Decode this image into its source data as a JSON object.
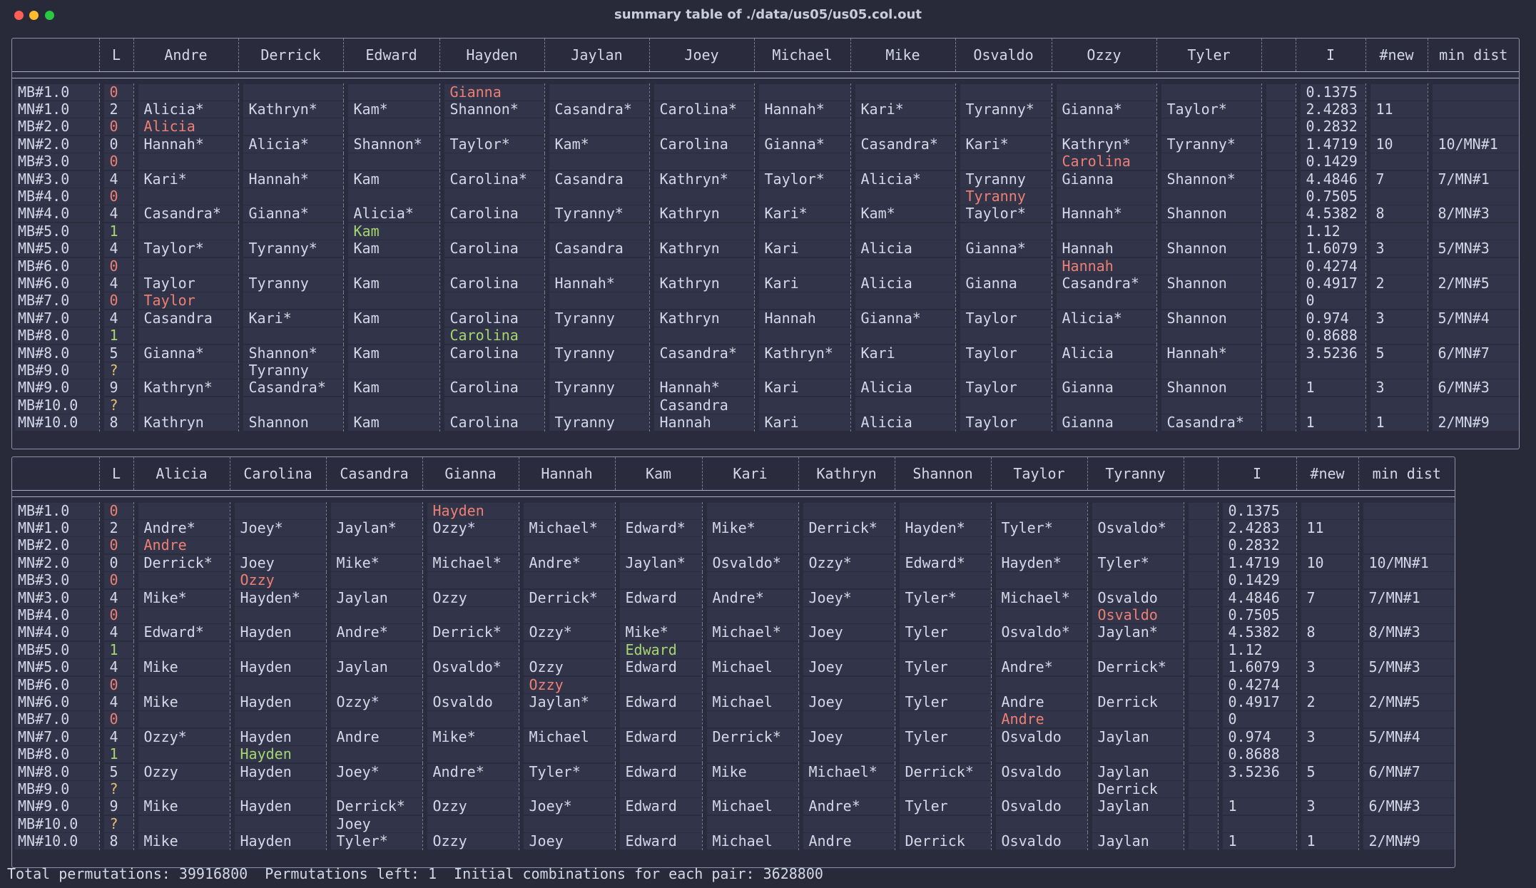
{
  "window": {
    "title": "summary table of ./data/us05/us05.col.out"
  },
  "colors": {
    "red": "#ee7f73",
    "green": "#a5d66f",
    "yellow": "#e6c06b",
    "background": "#282a3a"
  },
  "table1": {
    "headers": [
      "",
      "L",
      "Andre",
      "Derrick",
      "Edward",
      "Hayden",
      "Jaylan",
      "Joey",
      "Michael",
      "Mike",
      "Osvaldo",
      "Ozzy",
      "Tyler",
      "",
      "I",
      "#new",
      "min dist"
    ],
    "rows": [
      {
        "label": "MB#1.0",
        "L": "0",
        "Lc": "red",
        "cells": [
          "",
          "",
          "",
          "Gianna",
          "",
          "",
          "",
          "",
          "",
          "",
          "",
          ""
        ],
        "cc": [
          0,
          0,
          0,
          1,
          0,
          0,
          0,
          0,
          0,
          0,
          0,
          0
        ],
        "I": "0.1375",
        "new": "",
        "dist": ""
      },
      {
        "label": "MN#1.0",
        "L": "2",
        "Lc": "",
        "cells": [
          "Alicia*",
          "Kathryn*",
          "Kam*",
          "Shannon*",
          "Casandra*",
          "Carolina*",
          "Hannah*",
          "Kari*",
          "Tyranny*",
          "Gianna*",
          "Taylor*",
          ""
        ],
        "cc": [],
        "I": "2.4283",
        "new": "11",
        "dist": ""
      },
      {
        "label": "MB#2.0",
        "L": "0",
        "Lc": "red",
        "cells": [
          "Alicia",
          "",
          "",
          "",
          "",
          "",
          "",
          "",
          "",
          "",
          "",
          ""
        ],
        "cc": [
          1,
          0,
          0,
          0,
          0,
          0,
          0,
          0,
          0,
          0,
          0,
          0
        ],
        "I": "0.2832",
        "new": "",
        "dist": ""
      },
      {
        "label": "MN#2.0",
        "L": "0",
        "Lc": "",
        "cells": [
          "Hannah*",
          "Alicia*",
          "Shannon*",
          "Taylor*",
          "Kam*",
          "Carolina",
          "Gianna*",
          "Casandra*",
          "Kari*",
          "Kathryn*",
          "Tyranny*",
          ""
        ],
        "cc": [],
        "I": "1.4719",
        "new": "10",
        "dist": "10/MN#1"
      },
      {
        "label": "MB#3.0",
        "L": "0",
        "Lc": "red",
        "cells": [
          "",
          "",
          "",
          "",
          "",
          "",
          "",
          "",
          "",
          "Carolina",
          "",
          ""
        ],
        "cc": [
          0,
          0,
          0,
          0,
          0,
          0,
          0,
          0,
          0,
          1,
          0,
          0
        ],
        "I": "0.1429",
        "new": "",
        "dist": ""
      },
      {
        "label": "MN#3.0",
        "L": "4",
        "Lc": "",
        "cells": [
          "Kari*",
          "Hannah*",
          "Kam",
          "Carolina*",
          "Casandra",
          "Kathryn*",
          "Taylor*",
          "Alicia*",
          "Tyranny",
          "Gianna",
          "Shannon*",
          ""
        ],
        "cc": [],
        "I": "4.4846",
        "new": "7",
        "dist": "7/MN#1"
      },
      {
        "label": "MB#4.0",
        "L": "0",
        "Lc": "red",
        "cells": [
          "",
          "",
          "",
          "",
          "",
          "",
          "",
          "",
          "Tyranny",
          "",
          "",
          ""
        ],
        "cc": [
          0,
          0,
          0,
          0,
          0,
          0,
          0,
          0,
          1,
          0,
          0,
          0
        ],
        "I": "0.7505",
        "new": "",
        "dist": ""
      },
      {
        "label": "MN#4.0",
        "L": "4",
        "Lc": "",
        "cells": [
          "Casandra*",
          "Gianna*",
          "Alicia*",
          "Carolina",
          "Tyranny*",
          "Kathryn",
          "Kari*",
          "Kam*",
          "Taylor*",
          "Hannah*",
          "Shannon",
          ""
        ],
        "cc": [],
        "I": "4.5382",
        "new": "8",
        "dist": "8/MN#3"
      },
      {
        "label": "MB#5.0",
        "L": "1",
        "Lc": "green",
        "cells": [
          "",
          "",
          "Kam",
          "",
          "",
          "",
          "",
          "",
          "",
          "",
          "",
          ""
        ],
        "cc": [
          0,
          0,
          2,
          0,
          0,
          0,
          0,
          0,
          0,
          0,
          0,
          0
        ],
        "I": "1.12",
        "new": "",
        "dist": ""
      },
      {
        "label": "MN#5.0",
        "L": "4",
        "Lc": "",
        "cells": [
          "Taylor*",
          "Tyranny*",
          "Kam",
          "Carolina",
          "Casandra",
          "Kathryn",
          "Kari",
          "Alicia",
          "Gianna*",
          "Hannah",
          "Shannon",
          ""
        ],
        "cc": [],
        "I": "1.6079",
        "new": "3",
        "dist": "5/MN#3"
      },
      {
        "label": "MB#6.0",
        "L": "0",
        "Lc": "red",
        "cells": [
          "",
          "",
          "",
          "",
          "",
          "",
          "",
          "",
          "",
          "Hannah",
          "",
          ""
        ],
        "cc": [
          0,
          0,
          0,
          0,
          0,
          0,
          0,
          0,
          0,
          1,
          0,
          0
        ],
        "I": "0.4274",
        "new": "",
        "dist": ""
      },
      {
        "label": "MN#6.0",
        "L": "4",
        "Lc": "",
        "cells": [
          "Taylor",
          "Tyranny",
          "Kam",
          "Carolina",
          "Hannah*",
          "Kathryn",
          "Kari",
          "Alicia",
          "Gianna",
          "Casandra*",
          "Shannon",
          ""
        ],
        "cc": [],
        "I": "0.4917",
        "new": "2",
        "dist": "2/MN#5"
      },
      {
        "label": "MB#7.0",
        "L": "0",
        "Lc": "red",
        "cells": [
          "Taylor",
          "",
          "",
          "",
          "",
          "",
          "",
          "",
          "",
          "",
          "",
          ""
        ],
        "cc": [
          1,
          0,
          0,
          0,
          0,
          0,
          0,
          0,
          0,
          0,
          0,
          0
        ],
        "I": "0",
        "new": "",
        "dist": ""
      },
      {
        "label": "MN#7.0",
        "L": "4",
        "Lc": "",
        "cells": [
          "Casandra",
          "Kari*",
          "Kam",
          "Carolina",
          "Tyranny",
          "Kathryn",
          "Hannah",
          "Gianna*",
          "Taylor",
          "Alicia*",
          "Shannon",
          ""
        ],
        "cc": [],
        "I": "0.974",
        "new": "3",
        "dist": "5/MN#4"
      },
      {
        "label": "MB#8.0",
        "L": "1",
        "Lc": "green",
        "cells": [
          "",
          "",
          "",
          "Carolina",
          "",
          "",
          "",
          "",
          "",
          "",
          "",
          ""
        ],
        "cc": [
          0,
          0,
          0,
          2,
          0,
          0,
          0,
          0,
          0,
          0,
          0,
          0
        ],
        "I": "0.8688",
        "new": "",
        "dist": ""
      },
      {
        "label": "MN#8.0",
        "L": "5",
        "Lc": "",
        "cells": [
          "Gianna*",
          "Shannon*",
          "Kam",
          "Carolina",
          "Tyranny",
          "Casandra*",
          "Kathryn*",
          "Kari",
          "Taylor",
          "Alicia",
          "Hannah*",
          ""
        ],
        "cc": [],
        "I": "3.5236",
        "new": "5",
        "dist": "6/MN#7"
      },
      {
        "label": "MB#9.0",
        "L": "?",
        "Lc": "yellow",
        "cells": [
          "",
          "Tyranny",
          "",
          "",
          "",
          "",
          "",
          "",
          "",
          "",
          "",
          ""
        ],
        "cc": [],
        "I": "",
        "new": "",
        "dist": ""
      },
      {
        "label": "MN#9.0",
        "L": "9",
        "Lc": "",
        "cells": [
          "Kathryn*",
          "Casandra*",
          "Kam",
          "Carolina",
          "Tyranny",
          "Hannah*",
          "Kari",
          "Alicia",
          "Taylor",
          "Gianna",
          "Shannon",
          ""
        ],
        "cc": [],
        "I": "1",
        "new": "3",
        "dist": "6/MN#3"
      },
      {
        "label": "MB#10.0",
        "L": "?",
        "Lc": "yellow",
        "cells": [
          "",
          "",
          "",
          "",
          "",
          "Casandra",
          "",
          "",
          "",
          "",
          "",
          ""
        ],
        "cc": [],
        "I": "",
        "new": "",
        "dist": ""
      },
      {
        "label": "MN#10.0",
        "L": "8",
        "Lc": "",
        "cells": [
          "Kathryn",
          "Shannon",
          "Kam",
          "Carolina",
          "Tyranny",
          "Hannah",
          "Kari",
          "Alicia",
          "Taylor",
          "Gianna",
          "Casandra*",
          ""
        ],
        "cc": [],
        "I": "1",
        "new": "1",
        "dist": "2/MN#9"
      }
    ]
  },
  "table2": {
    "headers": [
      "",
      "L",
      "Alicia",
      "Carolina",
      "Casandra",
      "Gianna",
      "Hannah",
      "Kam",
      "Kari",
      "Kathryn",
      "Shannon",
      "Taylor",
      "Tyranny",
      "",
      "I",
      "#new",
      "min dist"
    ],
    "rows": [
      {
        "label": "MB#1.0",
        "L": "0",
        "Lc": "red",
        "cells": [
          "",
          "",
          "",
          "Hayden",
          "",
          "",
          "",
          "",
          "",
          "",
          "",
          ""
        ],
        "cc": [
          0,
          0,
          0,
          1,
          0,
          0,
          0,
          0,
          0,
          0,
          0,
          0
        ],
        "I": "0.1375",
        "new": "",
        "dist": ""
      },
      {
        "label": "MN#1.0",
        "L": "2",
        "Lc": "",
        "cells": [
          "Andre*",
          "Joey*",
          "Jaylan*",
          "Ozzy*",
          "Michael*",
          "Edward*",
          "Mike*",
          "Derrick*",
          "Hayden*",
          "Tyler*",
          "Osvaldo*",
          ""
        ],
        "cc": [],
        "I": "2.4283",
        "new": "11",
        "dist": ""
      },
      {
        "label": "MB#2.0",
        "L": "0",
        "Lc": "red",
        "cells": [
          "Andre",
          "",
          "",
          "",
          "",
          "",
          "",
          "",
          "",
          "",
          "",
          ""
        ],
        "cc": [
          1,
          0,
          0,
          0,
          0,
          0,
          0,
          0,
          0,
          0,
          0,
          0
        ],
        "I": "0.2832",
        "new": "",
        "dist": ""
      },
      {
        "label": "MN#2.0",
        "L": "0",
        "Lc": "",
        "cells": [
          "Derrick*",
          "Joey",
          "Mike*",
          "Michael*",
          "Andre*",
          "Jaylan*",
          "Osvaldo*",
          "Ozzy*",
          "Edward*",
          "Hayden*",
          "Tyler*",
          ""
        ],
        "cc": [],
        "I": "1.4719",
        "new": "10",
        "dist": "10/MN#1"
      },
      {
        "label": "MB#3.0",
        "L": "0",
        "Lc": "red",
        "cells": [
          "",
          "Ozzy",
          "",
          "",
          "",
          "",
          "",
          "",
          "",
          "",
          "",
          ""
        ],
        "cc": [
          0,
          1,
          0,
          0,
          0,
          0,
          0,
          0,
          0,
          0,
          0,
          0
        ],
        "I": "0.1429",
        "new": "",
        "dist": ""
      },
      {
        "label": "MN#3.0",
        "L": "4",
        "Lc": "",
        "cells": [
          "Mike*",
          "Hayden*",
          "Jaylan",
          "Ozzy",
          "Derrick*",
          "Edward",
          "Andre*",
          "Joey*",
          "Tyler*",
          "Michael*",
          "Osvaldo",
          ""
        ],
        "cc": [],
        "I": "4.4846",
        "new": "7",
        "dist": "7/MN#1"
      },
      {
        "label": "MB#4.0",
        "L": "0",
        "Lc": "red",
        "cells": [
          "",
          "",
          "",
          "",
          "",
          "",
          "",
          "",
          "",
          "",
          "Osvaldo",
          ""
        ],
        "cc": [
          0,
          0,
          0,
          0,
          0,
          0,
          0,
          0,
          0,
          0,
          1,
          0
        ],
        "I": "0.7505",
        "new": "",
        "dist": ""
      },
      {
        "label": "MN#4.0",
        "L": "4",
        "Lc": "",
        "cells": [
          "Edward*",
          "Hayden",
          "Andre*",
          "Derrick*",
          "Ozzy*",
          "Mike*",
          "Michael*",
          "Joey",
          "Tyler",
          "Osvaldo*",
          "Jaylan*",
          ""
        ],
        "cc": [],
        "I": "4.5382",
        "new": "8",
        "dist": "8/MN#3"
      },
      {
        "label": "MB#5.0",
        "L": "1",
        "Lc": "green",
        "cells": [
          "",
          "",
          "",
          "",
          "",
          "Edward",
          "",
          "",
          "",
          "",
          "",
          ""
        ],
        "cc": [
          0,
          0,
          0,
          0,
          0,
          2,
          0,
          0,
          0,
          0,
          0,
          0
        ],
        "I": "1.12",
        "new": "",
        "dist": ""
      },
      {
        "label": "MN#5.0",
        "L": "4",
        "Lc": "",
        "cells": [
          "Mike",
          "Hayden",
          "Jaylan",
          "Osvaldo*",
          "Ozzy",
          "Edward",
          "Michael",
          "Joey",
          "Tyler",
          "Andre*",
          "Derrick*",
          ""
        ],
        "cc": [],
        "I": "1.6079",
        "new": "3",
        "dist": "5/MN#3"
      },
      {
        "label": "MB#6.0",
        "L": "0",
        "Lc": "red",
        "cells": [
          "",
          "",
          "",
          "",
          "Ozzy",
          "",
          "",
          "",
          "",
          "",
          "",
          ""
        ],
        "cc": [
          0,
          0,
          0,
          0,
          1,
          0,
          0,
          0,
          0,
          0,
          0,
          0
        ],
        "I": "0.4274",
        "new": "",
        "dist": ""
      },
      {
        "label": "MN#6.0",
        "L": "4",
        "Lc": "",
        "cells": [
          "Mike",
          "Hayden",
          "Ozzy*",
          "Osvaldo",
          "Jaylan*",
          "Edward",
          "Michael",
          "Joey",
          "Tyler",
          "Andre",
          "Derrick",
          ""
        ],
        "cc": [],
        "I": "0.4917",
        "new": "2",
        "dist": "2/MN#5"
      },
      {
        "label": "MB#7.0",
        "L": "0",
        "Lc": "red",
        "cells": [
          "",
          "",
          "",
          "",
          "",
          "",
          "",
          "",
          "",
          "Andre",
          "",
          ""
        ],
        "cc": [
          0,
          0,
          0,
          0,
          0,
          0,
          0,
          0,
          0,
          1,
          0,
          0
        ],
        "I": "0",
        "new": "",
        "dist": ""
      },
      {
        "label": "MN#7.0",
        "L": "4",
        "Lc": "",
        "cells": [
          "Ozzy*",
          "Hayden",
          "Andre",
          "Mike*",
          "Michael",
          "Edward",
          "Derrick*",
          "Joey",
          "Tyler",
          "Osvaldo",
          "Jaylan",
          ""
        ],
        "cc": [],
        "I": "0.974",
        "new": "3",
        "dist": "5/MN#4"
      },
      {
        "label": "MB#8.0",
        "L": "1",
        "Lc": "green",
        "cells": [
          "",
          "Hayden",
          "",
          "",
          "",
          "",
          "",
          "",
          "",
          "",
          "",
          ""
        ],
        "cc": [
          0,
          2,
          0,
          0,
          0,
          0,
          0,
          0,
          0,
          0,
          0,
          0
        ],
        "I": "0.8688",
        "new": "",
        "dist": ""
      },
      {
        "label": "MN#8.0",
        "L": "5",
        "Lc": "",
        "cells": [
          "Ozzy",
          "Hayden",
          "Joey*",
          "Andre*",
          "Tyler*",
          "Edward",
          "Mike",
          "Michael*",
          "Derrick*",
          "Osvaldo",
          "Jaylan",
          ""
        ],
        "cc": [],
        "I": "3.5236",
        "new": "5",
        "dist": "6/MN#7"
      },
      {
        "label": "MB#9.0",
        "L": "?",
        "Lc": "yellow",
        "cells": [
          "",
          "",
          "",
          "",
          "",
          "",
          "",
          "",
          "",
          "",
          "Derrick",
          ""
        ],
        "cc": [],
        "I": "",
        "new": "",
        "dist": ""
      },
      {
        "label": "MN#9.0",
        "L": "9",
        "Lc": "",
        "cells": [
          "Mike",
          "Hayden",
          "Derrick*",
          "Ozzy",
          "Joey*",
          "Edward",
          "Michael",
          "Andre*",
          "Tyler",
          "Osvaldo",
          "Jaylan",
          ""
        ],
        "cc": [],
        "I": "1",
        "new": "3",
        "dist": "6/MN#3"
      },
      {
        "label": "MB#10.0",
        "L": "?",
        "Lc": "yellow",
        "cells": [
          "",
          "",
          "Joey",
          "",
          "",
          "",
          "",
          "",
          "",
          "",
          "",
          ""
        ],
        "cc": [],
        "I": "",
        "new": "",
        "dist": ""
      },
      {
        "label": "MN#10.0",
        "L": "8",
        "Lc": "",
        "cells": [
          "Mike",
          "Hayden",
          "Tyler*",
          "Ozzy",
          "Joey",
          "Edward",
          "Michael",
          "Andre",
          "Derrick",
          "Osvaldo",
          "Jaylan",
          ""
        ],
        "cc": [],
        "I": "1",
        "new": "1",
        "dist": "2/MN#9"
      }
    ]
  },
  "footer": {
    "text": "Total permutations: 39916800  Permutations left: 1  Initial combinations for each pair: 3628800"
  }
}
